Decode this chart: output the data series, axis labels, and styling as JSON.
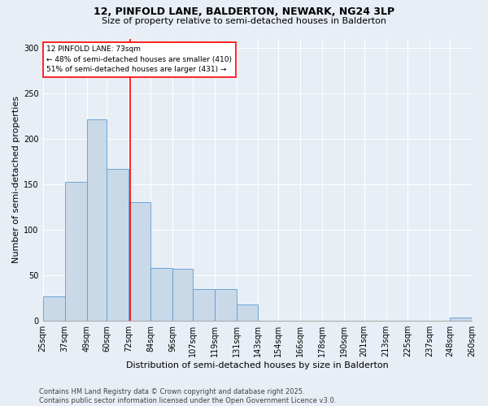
{
  "title1": "12, PINFOLD LANE, BALDERTON, NEWARK, NG24 3LP",
  "title2": "Size of property relative to semi-detached houses in Balderton",
  "xlabel": "Distribution of semi-detached houses by size in Balderton",
  "ylabel": "Number of semi-detached properties",
  "footnote": "Contains HM Land Registry data © Crown copyright and database right 2025.\nContains public sector information licensed under the Open Government Licence v3.0.",
  "bins": [
    25,
    37,
    49,
    60,
    72,
    84,
    96,
    107,
    119,
    131,
    143,
    154,
    166,
    178,
    190,
    201,
    213,
    225,
    237,
    248,
    260
  ],
  "bin_labels": [
    "25sqm",
    "37sqm",
    "49sqm",
    "60sqm",
    "72sqm",
    "84sqm",
    "96sqm",
    "107sqm",
    "119sqm",
    "131sqm",
    "143sqm",
    "154sqm",
    "166sqm",
    "178sqm",
    "190sqm",
    "201sqm",
    "213sqm",
    "225sqm",
    "237sqm",
    "248sqm",
    "260sqm"
  ],
  "counts": [
    27,
    153,
    221,
    167,
    130,
    58,
    57,
    35,
    35,
    18,
    0,
    0,
    0,
    0,
    0,
    0,
    0,
    0,
    0,
    4
  ],
  "bar_color": "#c9d9e8",
  "bar_edge_color": "#5b9bd5",
  "vline_x": 73,
  "vline_color": "red",
  "annotation_title": "12 PINFOLD LANE: 73sqm",
  "annotation_line1": "← 48% of semi-detached houses are smaller (410)",
  "annotation_line2": "51% of semi-detached houses are larger (431) →",
  "annotation_box_color": "white",
  "annotation_box_edge": "red",
  "ylim": [
    0,
    310
  ],
  "yticks": [
    0,
    50,
    100,
    150,
    200,
    250,
    300
  ],
  "background_color": "#e8eef5",
  "plot_bg_color": "#e8eef5",
  "title1_fontsize": 9,
  "title2_fontsize": 8,
  "ylabel_fontsize": 8,
  "xlabel_fontsize": 8,
  "tick_fontsize": 7,
  "footnote_fontsize": 6
}
